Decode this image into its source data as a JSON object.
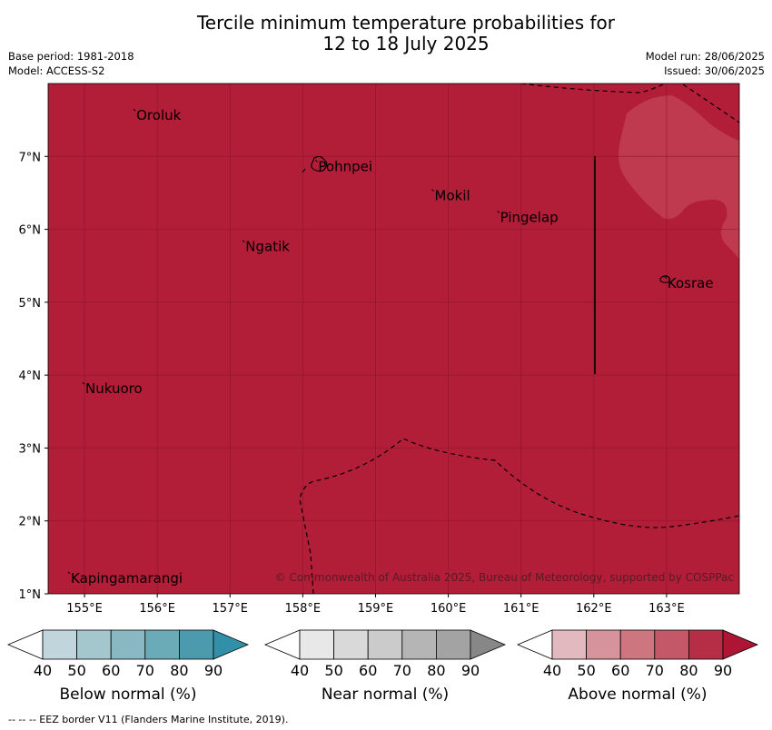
{
  "title_line1": "Tercile minimum temperature probabilities for",
  "title_line2": "12 to 18 July 2025",
  "base_period": "Base period: 1981-2018",
  "model": "Model: ACCESS-S2",
  "model_run": "Model run: 28/06/2025",
  "issued": "Issued: 30/06/2025",
  "copyright": "© Commonwealth of Australia 2025, Bureau of Meteorology, supported by COSPPac",
  "footer": "--  --  -- EEZ border V11 (Flanders Marine Institute, 2019).",
  "colors": {
    "above_dominant": "#b21d37",
    "above_70": "#bf3a4e"
  },
  "map": {
    "lon_range": [
      154.5,
      164
    ],
    "lat_range": [
      1,
      8
    ],
    "lon_ticks": [
      "155°E",
      "156°E",
      "157°E",
      "158°E",
      "159°E",
      "160°E",
      "161°E",
      "162°E",
      "163°E"
    ],
    "lat_ticks": [
      "7°N",
      "6°N",
      "5°N",
      "4°N",
      "3°N",
      "2°N",
      "1°N"
    ],
    "places": [
      {
        "name": "Oroluk",
        "lon": 155.7,
        "lat": 7.6
      },
      {
        "name": "Pohnpei",
        "lon": 158.2,
        "lat": 6.9
      },
      {
        "name": "Mokil",
        "lon": 159.8,
        "lat": 6.5
      },
      {
        "name": "Pingelap",
        "lon": 160.7,
        "lat": 6.2
      },
      {
        "name": "Ngatik",
        "lon": 157.2,
        "lat": 5.8
      },
      {
        "name": "Kosrae",
        "lon": 163.0,
        "lat": 5.3
      },
      {
        "name": "Nukuoro",
        "lon": 155.0,
        "lat": 3.85
      },
      {
        "name": "Kapingamarangi",
        "lon": 154.8,
        "lat": 1.25
      }
    ]
  },
  "colorbars": [
    {
      "label": "Below normal (%)",
      "ticks": [
        "40",
        "50",
        "60",
        "70",
        "80",
        "90"
      ],
      "colors": [
        "#ffffff",
        "#c0d5dc",
        "#a4c7cd",
        "#8ab8c2",
        "#6aaab9",
        "#4b9aae",
        "#3190a8"
      ]
    },
    {
      "label": "Near normal (%)",
      "ticks": [
        "40",
        "50",
        "60",
        "70",
        "80",
        "90"
      ],
      "colors": [
        "#ffffff",
        "#e8e8e8",
        "#d9d9d9",
        "#cbcbcb",
        "#b5b5b5",
        "#a3a3a3",
        "#878787"
      ]
    },
    {
      "label": "Above normal (%)",
      "ticks": [
        "40",
        "50",
        "60",
        "70",
        "80",
        "90"
      ],
      "colors": [
        "#ffffff",
        "#e1b9bf",
        "#d7939c",
        "#cd7680",
        "#c45768",
        "#b62e45",
        "#ae1534"
      ]
    }
  ]
}
